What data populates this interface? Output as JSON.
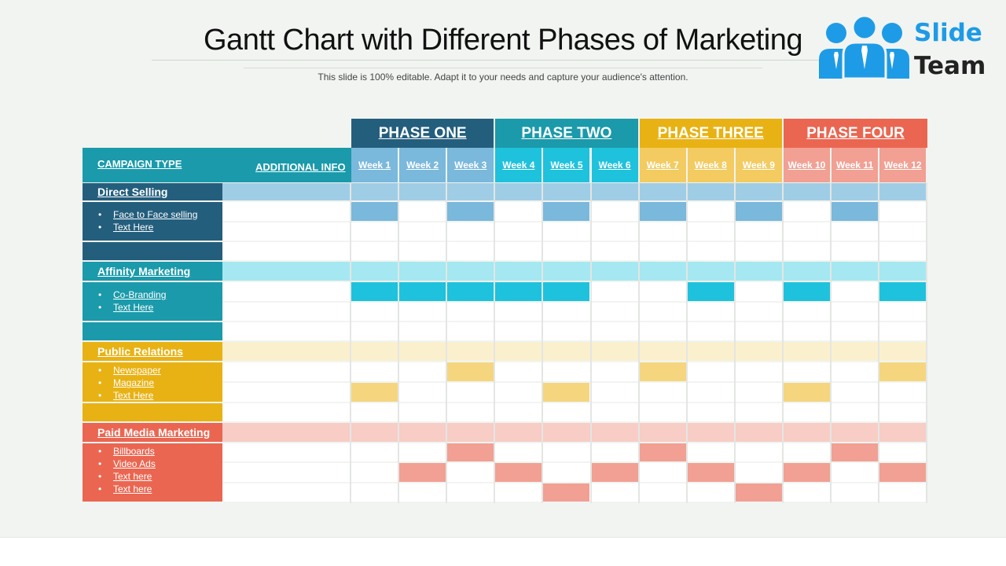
{
  "slide": {
    "title": "Gantt Chart with Different Phases of Marketing",
    "subtitle": "This slide is 100% editable. Adapt it to your needs and capture your audience's attention."
  },
  "logo": {
    "line1": "Slide",
    "line2": "Team"
  },
  "header": {
    "campaign_type": "CAMPAIGN TYPE",
    "additional_info": "ADDITIONAL INFO",
    "color": "#1a9aaa"
  },
  "phases": [
    {
      "label": "PHASE ONE",
      "color": "#245e7d",
      "week_color": "#7ab8dc",
      "weeks": [
        "Week 1",
        "Week 2",
        "Week 3"
      ]
    },
    {
      "label": "PHASE TWO",
      "color": "#1a9aaa",
      "week_color": "#1fc2dc",
      "weeks": [
        "Week 4",
        "Week 5",
        "Week 6"
      ]
    },
    {
      "label": "PHASE THREE",
      "color": "#e8b214",
      "week_color": "#f3cb60",
      "weeks": [
        "Week 7",
        "Week 8",
        "Week 9"
      ]
    },
    {
      "label": "PHASE FOUR",
      "color": "#ea6651",
      "week_color": "#f1a093",
      "weeks": [
        "Week 10",
        "Week 11",
        "Week 12"
      ]
    }
  ],
  "categories": [
    {
      "name": "Direct Selling",
      "color": "#245e7d",
      "band_color": "#a0cde6",
      "bar_color": "#7ab8dc",
      "items": [
        "Face to Face selling",
        "Text Here"
      ],
      "bars": [
        [
          1,
          3,
          5,
          7,
          9,
          11
        ]
      ]
    },
    {
      "name": "Affinity Marketing",
      "color": "#1a9aaa",
      "band_color": "#a5e8f1",
      "bar_color": "#1fc2dc",
      "items": [
        "Co-Branding",
        "Text Here"
      ],
      "bars": [
        [
          1,
          2,
          3,
          4,
          5,
          8,
          10,
          12
        ]
      ]
    },
    {
      "name": "Public Relations",
      "color": "#e8b214",
      "band_color": "#fbf0cd",
      "bar_color": "#f5d67f",
      "items": [
        "Newspaper",
        "Magazine",
        "Text Here"
      ],
      "bars": [
        [
          3,
          7,
          12
        ],
        [
          1,
          5,
          10
        ]
      ]
    },
    {
      "name": "Paid Media Marketing",
      "color": "#ea6651",
      "band_color": "#f7cdc6",
      "bar_color": "#f1a093",
      "items": [
        "Billboards",
        "Video Ads",
        "Text here",
        "Text here"
      ],
      "bars": [
        [
          3,
          7,
          11
        ],
        [
          2,
          4,
          6,
          8,
          10,
          12
        ],
        [
          5,
          9
        ]
      ]
    }
  ]
}
